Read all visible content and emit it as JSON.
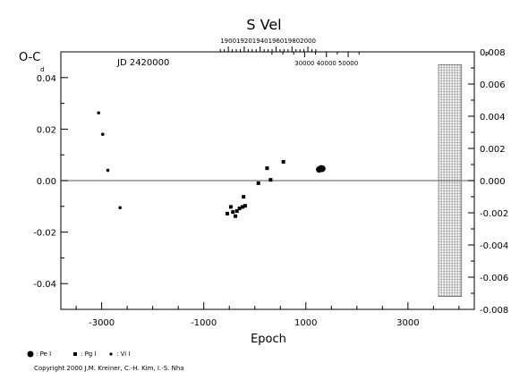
{
  "chart_data": {
    "type": "scatter",
    "title": "S Vel",
    "ylabel": "O-C",
    "xlabel": "Epoch",
    "xlim": [
      -3800,
      4300
    ],
    "ylim": [
      -0.05,
      0.05
    ],
    "y_right_lim": [
      -0.008,
      0.008
    ],
    "top_year_ticks": [
      "1900",
      "1920",
      "1940",
      "1960",
      "1980",
      "2000"
    ],
    "top_year_values": [
      1900,
      1920,
      1940,
      1960,
      1980,
      2000
    ],
    "jd_label": "JD 2420000",
    "jd_ticks": [
      "30000",
      "40000",
      "50000"
    ],
    "jd_values": [
      30000,
      40000,
      50000
    ],
    "x_ticks": [
      "-3000",
      "-1000",
      "1000",
      "3000"
    ],
    "x_tick_values": [
      -3000,
      -1000,
      1000,
      3000
    ],
    "y_left_ticks": [
      "0.04",
      "0.02",
      "0.00",
      "-0.02",
      "-0.04"
    ],
    "y_left_values": [
      0.04,
      0.02,
      0.0,
      -0.02,
      -0.04
    ],
    "y_left_top_label": "d",
    "y_right_ticks": [
      "0.008",
      "0.006",
      "0.004",
      "0.002",
      "0.000",
      "-0.002",
      "-0.004",
      "-0.006",
      "-0.008"
    ],
    "y_right_values": [
      0.008,
      0.006,
      0.004,
      0.002,
      0.0,
      -0.002,
      -0.004,
      -0.006,
      -0.008
    ],
    "y_right_top_label": "P",
    "zero_line": 0.0,
    "hatched_region": {
      "x_start": 3600,
      "x_end": 4050,
      "y_start": -0.045,
      "y_end": 0.045
    },
    "series": [
      {
        "name": "Pe",
        "marker": "large-circle",
        "points": [
          {
            "x": 1260,
            "y": 0.0043
          },
          {
            "x": 1280,
            "y": 0.0046
          },
          {
            "x": 1300,
            "y": 0.0048
          },
          {
            "x": 1315,
            "y": 0.0045
          },
          {
            "x": 1325,
            "y": 0.0047
          }
        ]
      },
      {
        "name": "Pg",
        "marker": "square",
        "points": [
          {
            "x": -540,
            "y": -0.0128
          },
          {
            "x": -470,
            "y": -0.0102
          },
          {
            "x": -430,
            "y": -0.0122
          },
          {
            "x": -380,
            "y": -0.0138
          },
          {
            "x": -350,
            "y": -0.0118
          },
          {
            "x": -300,
            "y": -0.0108
          },
          {
            "x": -240,
            "y": -0.0102
          },
          {
            "x": -220,
            "y": -0.0063
          },
          {
            "x": -190,
            "y": -0.0098
          },
          {
            "x": 70,
            "y": -0.001
          },
          {
            "x": 240,
            "y": 0.0048
          },
          {
            "x": 310,
            "y": 0.0003
          },
          {
            "x": 560,
            "y": 0.0073
          }
        ]
      },
      {
        "name": "Vi",
        "marker": "small-circle",
        "points": [
          {
            "x": -3060,
            "y": 0.0263
          },
          {
            "x": -2980,
            "y": 0.018
          },
          {
            "x": -2880,
            "y": 0.004
          },
          {
            "x": -2640,
            "y": -0.0105
          }
        ]
      }
    ],
    "legend": [
      "Pe",
      "Pg",
      "Vi"
    ],
    "legend_position": "bottom-left"
  },
  "legend_labels": {
    "pe": ": Pe I",
    "pg": ": Pg I",
    "vi": ": Vi I"
  },
  "copyright": "Copyright 2000 J.M. Kreiner, C.-H. Kim, I.-S. Nha"
}
